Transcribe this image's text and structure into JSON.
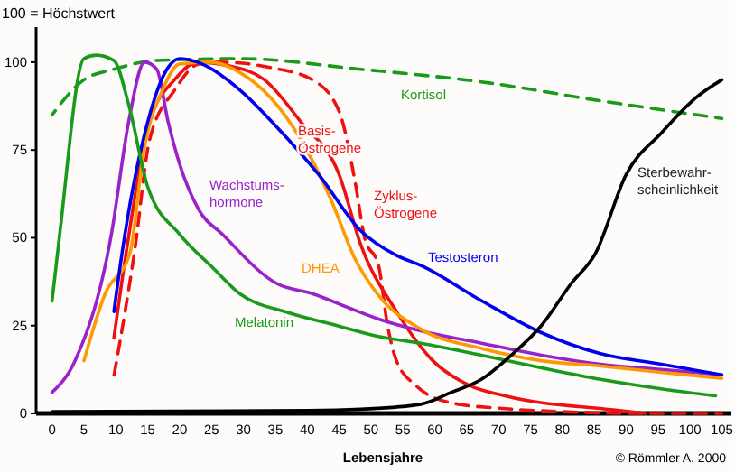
{
  "chart_data": {
    "type": "line",
    "title": "100 = Höchstwert",
    "xlabel": "Lebensjahre",
    "annotations": [
      "© Römmler A. 2000"
    ],
    "xlim": [
      -2.5,
      106.5
    ],
    "xticks": [
      0,
      5,
      10,
      15,
      20,
      25,
      30,
      35,
      40,
      45,
      50,
      55,
      60,
      65,
      70,
      75,
      80,
      85,
      90,
      95,
      100,
      105
    ],
    "ylim": [
      0,
      110
    ],
    "yticks": [
      0,
      25,
      50,
      75,
      100
    ],
    "grid": false,
    "series": [
      {
        "name": "Kortisol",
        "color": "#1a9a1a",
        "line_style": "dashed",
        "x": [
          0,
          5,
          9.7,
          16.4,
          29.5,
          48.4,
          67.3,
          86,
          105
        ],
        "values": [
          85,
          95,
          98,
          100.5,
          101,
          98,
          94.4,
          89,
          84
        ]
      },
      {
        "name": "Basis-\nÖstrogene",
        "color": "#ee1111",
        "x": [
          9.7,
          11.6,
          15.3,
          19.2,
          22.8,
          27.6,
          33.3,
          39,
          45,
          48.4,
          54,
          59.7,
          65.4,
          71,
          88,
          93
        ],
        "values": [
          21.5,
          45.6,
          83,
          95,
          100,
          99,
          95,
          83,
          68,
          48,
          29,
          15,
          8,
          5,
          1,
          0
        ]
      },
      {
        "name": "Zyklus-\nÖstrogene",
        "color": "#ee1111",
        "line_style": "dashed",
        "x": [
          9.7,
          13,
          15.3,
          19.2,
          23,
          26.7,
          34.2,
          40.8,
          45,
          47.5,
          49,
          51.2,
          52.6,
          54,
          57,
          62.6,
          70,
          80,
          90,
          105
        ],
        "values": [
          10.7,
          47,
          78,
          92,
          99.5,
          100,
          98.5,
          95,
          86,
          66,
          50,
          42,
          25,
          15,
          8,
          3,
          1.5,
          0.5,
          0,
          0
        ]
      },
      {
        "name": "Wachstums-\nhormone",
        "color": "#9922cc",
        "x": [
          0,
          3.6,
          9.3,
          12,
          14.5,
          16.4,
          18.2,
          20,
          23,
          26.7,
          35.2,
          41,
          46.6,
          51,
          57.8,
          67.3,
          76.7,
          86,
          95.5,
          105
        ],
        "values": [
          6,
          15,
          51,
          83,
          100,
          98,
          83,
          71,
          58,
          51,
          37,
          34,
          30,
          27,
          23.5,
          20,
          16.6,
          14,
          12.5,
          11
        ]
      },
      {
        "name": "DHEA",
        "color": "#ff9900",
        "x": [
          5,
          8.3,
          12.2,
          14.4,
          17.3,
          20,
          24.8,
          29.5,
          34.2,
          39,
          43.7,
          47.5,
          51,
          57.8,
          67.3,
          76.7,
          86,
          95.5,
          105
        ],
        "values": [
          15,
          34,
          45.6,
          75,
          92,
          99.5,
          100,
          97,
          90,
          78,
          61,
          44,
          34,
          24,
          18.5,
          15,
          13.5,
          11.7,
          10
        ]
      },
      {
        "name": "Testosteron",
        "color": "#0000ee",
        "x": [
          9.7,
          11,
          15.3,
          18,
          20,
          22.8,
          29.5,
          35,
          41.8,
          48.4,
          54,
          58,
          67.4,
          76.7,
          86,
          95.5,
          105
        ],
        "values": [
          29,
          46,
          85,
          98,
          101,
          100,
          92,
          82,
          68,
          52,
          45,
          42,
          32,
          23,
          17,
          14,
          11
        ]
      },
      {
        "name": "Melatonin",
        "color": "#1a9a1a",
        "x": [
          0,
          1.2,
          5,
          6.9,
          9.7,
          12,
          15,
          20,
          24.9,
          29.5,
          37,
          44.7,
          51,
          57.8,
          67.3,
          76.7,
          86,
          95.5,
          104
        ],
        "values": [
          32,
          51,
          101,
          102,
          100.5,
          88,
          64.5,
          51,
          42,
          34,
          28.7,
          25,
          22,
          20,
          16.6,
          13,
          9.7,
          7,
          5
        ]
      },
      {
        "name": "Sterbewahr-\nscheinlichkeit",
        "color": "#000000",
        "x": [
          0,
          40,
          48.4,
          57.8,
          62.6,
          67.3,
          72,
          76.7,
          81.4,
          85.2,
          90,
          95.6,
          101,
          105
        ],
        "values": [
          0.5,
          0.8,
          1.2,
          2.6,
          6,
          9.7,
          16.6,
          25,
          37,
          45.6,
          68,
          80,
          90,
          95
        ]
      }
    ]
  }
}
